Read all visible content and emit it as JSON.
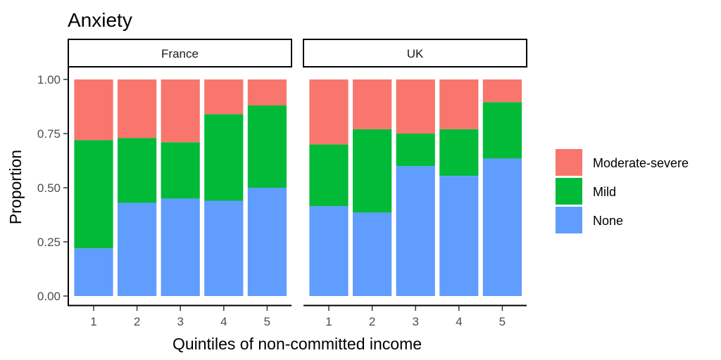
{
  "chart_data": {
    "type": "bar",
    "stacked": true,
    "title": "Anxiety",
    "xlabel": "Quintiles of non-committed income",
    "ylabel": "Proportion",
    "ylim": [
      0,
      1
    ],
    "yticks": [
      "0.00",
      "0.25",
      "0.50",
      "0.75",
      "1.00"
    ],
    "categories": [
      "1",
      "2",
      "3",
      "4",
      "5"
    ],
    "grid": false,
    "legend": {
      "position": "right",
      "entries": [
        {
          "key": "moderate",
          "label": "Moderate-severe",
          "color": "#F8766D"
        },
        {
          "key": "mild",
          "label": "Mild",
          "color": "#00BA38"
        },
        {
          "key": "none",
          "label": "None",
          "color": "#619CFF"
        }
      ]
    },
    "panels": [
      {
        "label": "France",
        "series": [
          {
            "name": "None",
            "values": [
              0.22,
              0.43,
              0.45,
              0.44,
              0.5
            ]
          },
          {
            "name": "Mild",
            "values": [
              0.5,
              0.3,
              0.26,
              0.4,
              0.38
            ]
          },
          {
            "name": "Moderate-severe",
            "values": [
              0.28,
              0.27,
              0.29,
              0.16,
              0.12
            ]
          }
        ]
      },
      {
        "label": "UK",
        "series": [
          {
            "name": "None",
            "values": [
              0.415,
              0.385,
              0.6,
              0.555,
              0.635
            ]
          },
          {
            "name": "Mild",
            "values": [
              0.285,
              0.385,
              0.15,
              0.215,
              0.26
            ]
          },
          {
            "name": "Moderate-severe",
            "values": [
              0.3,
              0.23,
              0.25,
              0.23,
              0.105
            ]
          }
        ]
      }
    ]
  }
}
